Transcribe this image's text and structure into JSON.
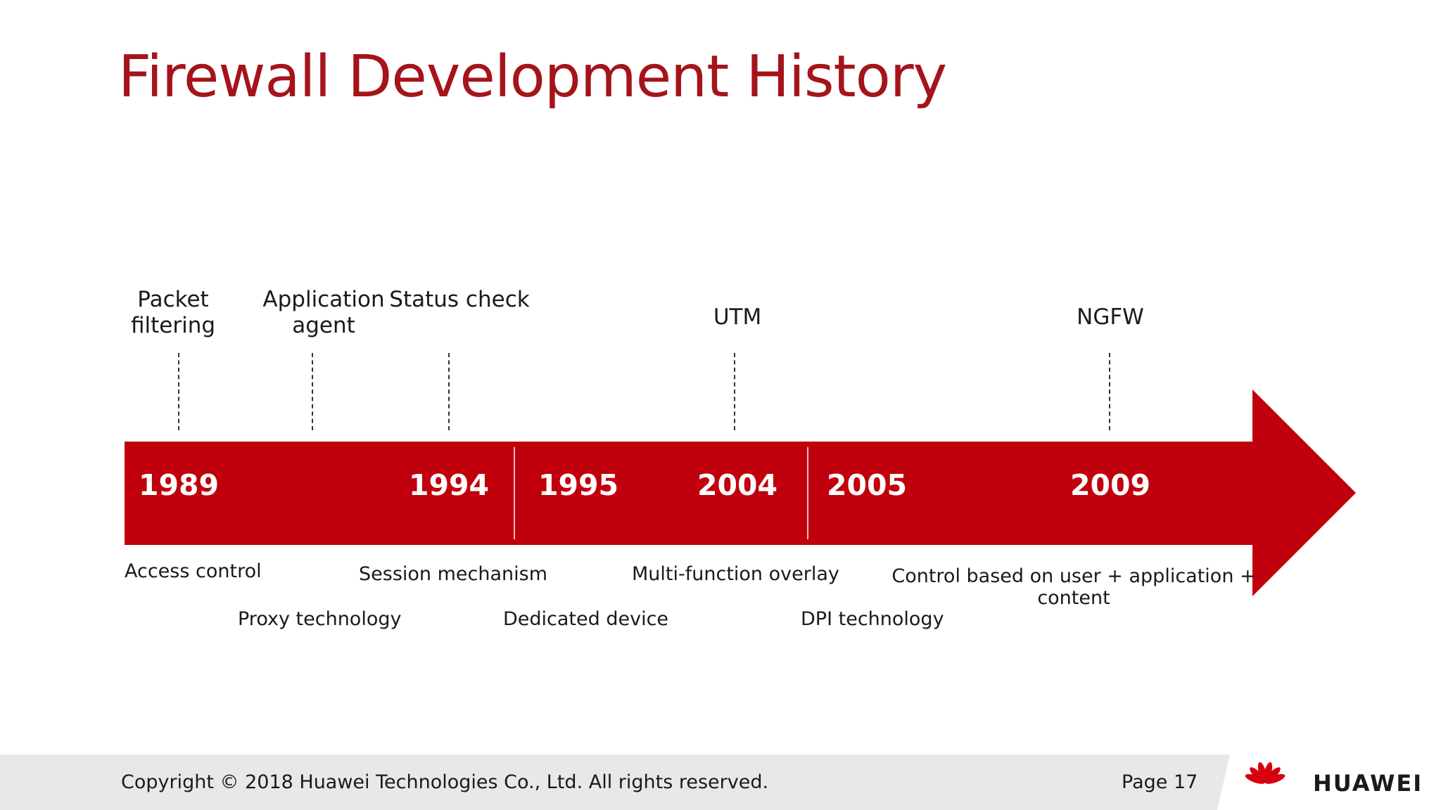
{
  "slide": {
    "title": "Firewall Development History"
  },
  "timeline": {
    "milestones": [
      {
        "label": "Packet filtering",
        "year": "1989"
      },
      {
        "label": "Application agent"
      },
      {
        "label": "Status check",
        "year": "1994"
      },
      {
        "label": "UTM",
        "year": "2004"
      },
      {
        "label": "NGFW",
        "year": "2009"
      }
    ],
    "years": [
      "1989",
      "1994",
      "1995",
      "2004",
      "2005",
      "2009"
    ],
    "features": [
      "Access control",
      "Proxy technology",
      "Session mechanism",
      "Dedicated device",
      "Multi-function overlay",
      "DPI technology",
      "Control based on user + application + content"
    ]
  },
  "footer": {
    "copyright": "Copyright © 2018 Huawei Technologies Co., Ltd. All rights reserved.",
    "page": "Page 17",
    "brand": "HUAWEI"
  },
  "colors": {
    "title": "#a4141a",
    "arrow": "#c0000c",
    "footer_bg": "#e8e8e8",
    "logo_red": "#d7000f"
  },
  "icons": {
    "logo": "huawei-petal-logo-icon"
  }
}
